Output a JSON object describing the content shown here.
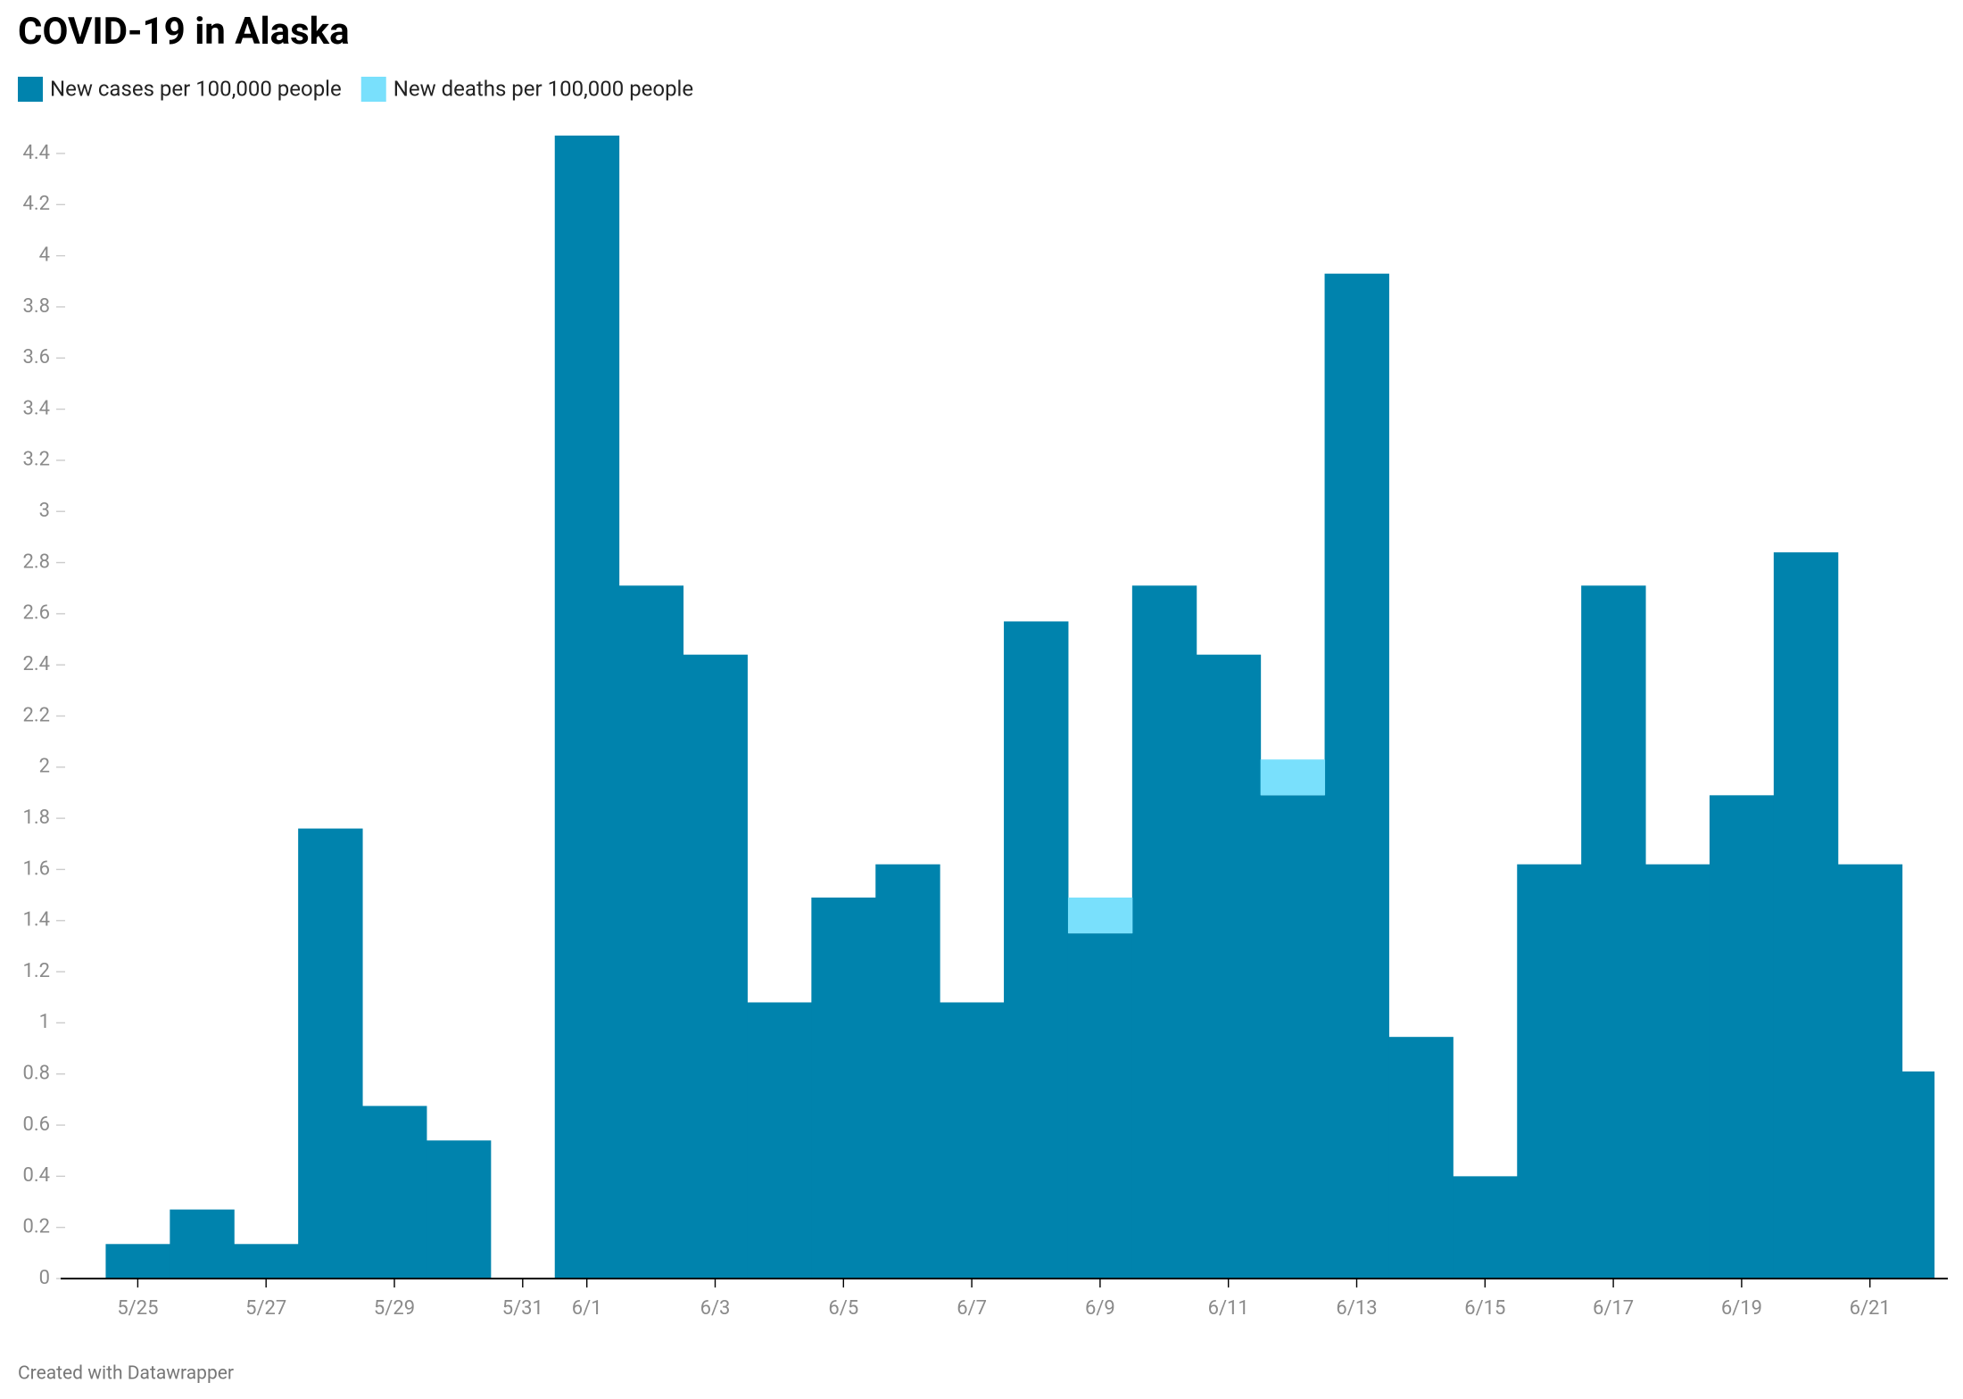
{
  "chart_data": {
    "type": "bar",
    "stacked": true,
    "title": "COVID-19 in Alaska",
    "footer": "Created with Datawrapper",
    "categories": [
      "5/25",
      null,
      "5/27",
      null,
      "5/29",
      null,
      "5/31",
      "6/1",
      null,
      "6/3",
      null,
      "6/5",
      null,
      "6/7",
      null,
      "6/9",
      null,
      "6/11",
      null,
      "6/13",
      null,
      "6/15",
      null,
      "6/17",
      null,
      "6/19",
      null,
      "6/21",
      null
    ],
    "series": [
      {
        "name": "New cases per 100,000 people",
        "color": "#0083ad",
        "values": [
          0.135,
          0.27,
          0.135,
          1.76,
          0.675,
          0.54,
          0,
          4.47,
          2.71,
          2.44,
          1.08,
          1.49,
          1.62,
          1.08,
          2.57,
          1.35,
          2.71,
          2.44,
          1.89,
          3.93,
          0.945,
          0.4,
          1.62,
          2.71,
          1.62,
          1.89,
          2.84,
          1.62,
          0.81
        ]
      },
      {
        "name": "New deaths per 100,000 people",
        "color": "#79e0fc",
        "values": [
          0,
          0,
          0,
          0,
          0,
          0,
          0,
          0,
          0,
          0,
          0,
          0,
          0,
          0,
          0,
          0.14,
          0,
          0,
          0.14,
          0,
          0,
          0,
          0,
          0,
          0,
          0,
          0,
          0,
          0
        ]
      }
    ],
    "ylim": [
      0,
      4.4
    ],
    "yticks": [
      0,
      0.2,
      0.4,
      0.6,
      0.8,
      1,
      1.2,
      1.4,
      1.6,
      1.8,
      2,
      2.2,
      2.4,
      2.6,
      2.8,
      3,
      3.2,
      3.4,
      3.6,
      3.8,
      4,
      4.2,
      4.4
    ],
    "grid": false
  }
}
